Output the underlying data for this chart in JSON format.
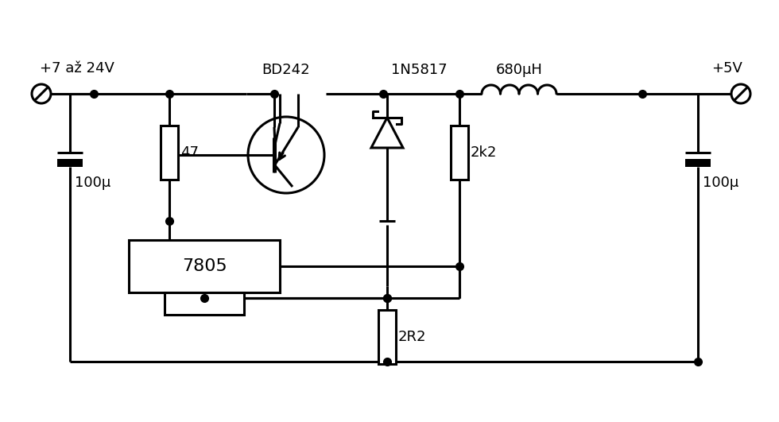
{
  "bg": "#ffffff",
  "lc": "#000000",
  "lw": 2.2,
  "ds": 7,
  "label_input": "+7 až 24V",
  "label_output": "+5V",
  "label_R47": "47",
  "label_C1": "100μ",
  "label_BD242": "BD242",
  "label_diode": "1N5817",
  "label_ind": "680μH",
  "label_R2k2": "2k2",
  "label_C2": "100μ",
  "label_7805": "7805",
  "label_2R2": "2R2",
  "fs": 13
}
